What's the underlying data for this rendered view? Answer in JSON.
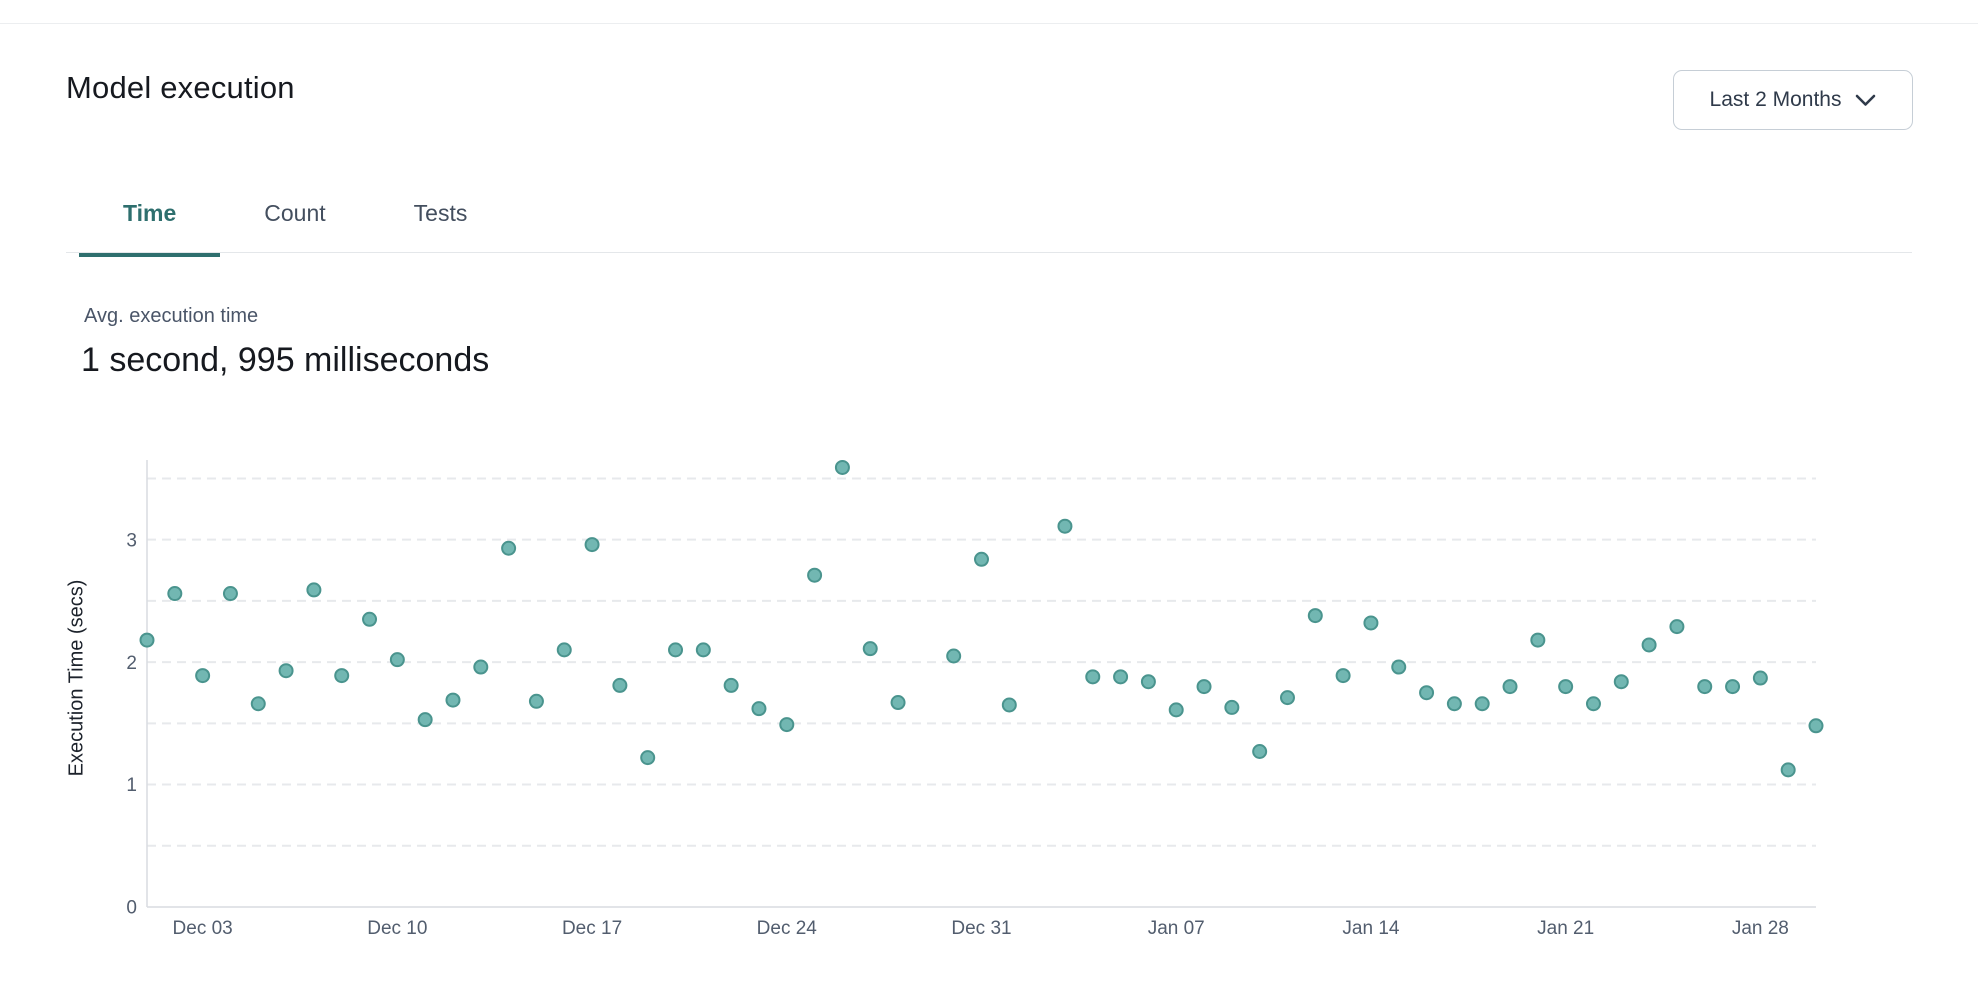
{
  "header": {
    "title": "Model execution",
    "range_button": {
      "label": "Last 2 Months",
      "icon": "chevron-down-icon"
    }
  },
  "tabs": {
    "items": [
      {
        "label": "Time",
        "active": true
      },
      {
        "label": "Count",
        "active": false
      },
      {
        "label": "Tests",
        "active": false
      }
    ],
    "active_color": "#2e6f6e"
  },
  "stats": {
    "label": "Avg. execution time",
    "value": "1 second, 995 milliseconds"
  },
  "colors": {
    "accent_teal": "#2e6f6e",
    "point_fill": "#72b7b2",
    "point_stroke": "#4a948e",
    "grid": "#e7e9ec",
    "axis": "#d9dce1",
    "tick_text": "#525d6e"
  },
  "chart_data": {
    "type": "scatter",
    "title": "",
    "xlabel": "",
    "ylabel": "Execution Time (secs)",
    "ylim": [
      0,
      3.61
    ],
    "yticks": [
      0,
      1,
      2,
      3
    ],
    "grid_step": 0.5,
    "grid_max": 3.5,
    "grid_dashed": true,
    "legend": "none",
    "x_domain_days": [
      0,
      60
    ],
    "xticks": [
      {
        "day": 2,
        "label": "Dec 03"
      },
      {
        "day": 9,
        "label": "Dec 10"
      },
      {
        "day": 16,
        "label": "Dec 17"
      },
      {
        "day": 23,
        "label": "Dec 24"
      },
      {
        "day": 30,
        "label": "Dec 31"
      },
      {
        "day": 37,
        "label": "Jan 07"
      },
      {
        "day": 44,
        "label": "Jan 14"
      },
      {
        "day": 51,
        "label": "Jan 21"
      },
      {
        "day": 58,
        "label": "Jan 28"
      }
    ],
    "points": [
      {
        "day": 0,
        "date": "Dec 01",
        "secs": 2.18
      },
      {
        "day": 1,
        "date": "Dec 02",
        "secs": 2.56
      },
      {
        "day": 2,
        "date": "Dec 03",
        "secs": 1.89
      },
      {
        "day": 3,
        "date": "Dec 04",
        "secs": 2.56
      },
      {
        "day": 4,
        "date": "Dec 05",
        "secs": 1.66
      },
      {
        "day": 5,
        "date": "Dec 06",
        "secs": 1.93
      },
      {
        "day": 6,
        "date": "Dec 07",
        "secs": 2.59
      },
      {
        "day": 7,
        "date": "Dec 08",
        "secs": 1.89
      },
      {
        "day": 8,
        "date": "Dec 09",
        "secs": 2.35
      },
      {
        "day": 9,
        "date": "Dec 10",
        "secs": 2.02
      },
      {
        "day": 10,
        "date": "Dec 11",
        "secs": 1.53
      },
      {
        "day": 11,
        "date": "Dec 12",
        "secs": 1.69
      },
      {
        "day": 12,
        "date": "Dec 13",
        "secs": 1.96
      },
      {
        "day": 13,
        "date": "Dec 14",
        "secs": 2.93
      },
      {
        "day": 14,
        "date": "Dec 15",
        "secs": 1.68
      },
      {
        "day": 15,
        "date": "Dec 16",
        "secs": 2.1
      },
      {
        "day": 16,
        "date": "Dec 17",
        "secs": 2.96
      },
      {
        "day": 17,
        "date": "Dec 18",
        "secs": 1.81
      },
      {
        "day": 18,
        "date": "Dec 19",
        "secs": 1.22
      },
      {
        "day": 19,
        "date": "Dec 20",
        "secs": 2.1
      },
      {
        "day": 20,
        "date": "Dec 21",
        "secs": 2.1
      },
      {
        "day": 21,
        "date": "Dec 22",
        "secs": 1.81
      },
      {
        "day": 22,
        "date": "Dec 23",
        "secs": 1.62
      },
      {
        "day": 23,
        "date": "Dec 24",
        "secs": 1.49
      },
      {
        "day": 24,
        "date": "Dec 25",
        "secs": 2.71
      },
      {
        "day": 25,
        "date": "Dec 26",
        "secs": 3.59
      },
      {
        "day": 26,
        "date": "Dec 27",
        "secs": 2.11
      },
      {
        "day": 27,
        "date": "Dec 28",
        "secs": 1.67
      },
      {
        "day": 29,
        "date": "Dec 30",
        "secs": 2.05
      },
      {
        "day": 30,
        "date": "Dec 31",
        "secs": 2.84
      },
      {
        "day": 31,
        "date": "Jan 01",
        "secs": 1.65
      },
      {
        "day": 33,
        "date": "Jan 03",
        "secs": 3.11
      },
      {
        "day": 34,
        "date": "Jan 04",
        "secs": 1.88
      },
      {
        "day": 35,
        "date": "Jan 05",
        "secs": 1.88
      },
      {
        "day": 36,
        "date": "Jan 06",
        "secs": 1.84
      },
      {
        "day": 37,
        "date": "Jan 07",
        "secs": 1.61
      },
      {
        "day": 38,
        "date": "Jan 08",
        "secs": 1.8
      },
      {
        "day": 39,
        "date": "Jan 09",
        "secs": 1.63
      },
      {
        "day": 40,
        "date": "Jan 10",
        "secs": 1.27
      },
      {
        "day": 41,
        "date": "Jan 11",
        "secs": 1.71
      },
      {
        "day": 42,
        "date": "Jan 12",
        "secs": 2.38
      },
      {
        "day": 43,
        "date": "Jan 13",
        "secs": 1.89
      },
      {
        "day": 44,
        "date": "Jan 14",
        "secs": 2.32
      },
      {
        "day": 45,
        "date": "Jan 15",
        "secs": 1.96
      },
      {
        "day": 46,
        "date": "Jan 16",
        "secs": 1.75
      },
      {
        "day": 47,
        "date": "Jan 17",
        "secs": 1.66
      },
      {
        "day": 48,
        "date": "Jan 18",
        "secs": 1.66
      },
      {
        "day": 49,
        "date": "Jan 19",
        "secs": 1.8
      },
      {
        "day": 50,
        "date": "Jan 20",
        "secs": 2.18
      },
      {
        "day": 51,
        "date": "Jan 21",
        "secs": 1.8
      },
      {
        "day": 52,
        "date": "Jan 22",
        "secs": 1.66
      },
      {
        "day": 53,
        "date": "Jan 23",
        "secs": 1.84
      },
      {
        "day": 54,
        "date": "Jan 24",
        "secs": 2.14
      },
      {
        "day": 55,
        "date": "Jan 25",
        "secs": 2.29
      },
      {
        "day": 56,
        "date": "Jan 26",
        "secs": 1.8
      },
      {
        "day": 57,
        "date": "Jan 27",
        "secs": 1.8
      },
      {
        "day": 58,
        "date": "Jan 28",
        "secs": 1.87
      },
      {
        "day": 59,
        "date": "Jan 29",
        "secs": 1.12
      },
      {
        "day": 60,
        "date": "Jan 30",
        "secs": 1.48
      }
    ]
  }
}
